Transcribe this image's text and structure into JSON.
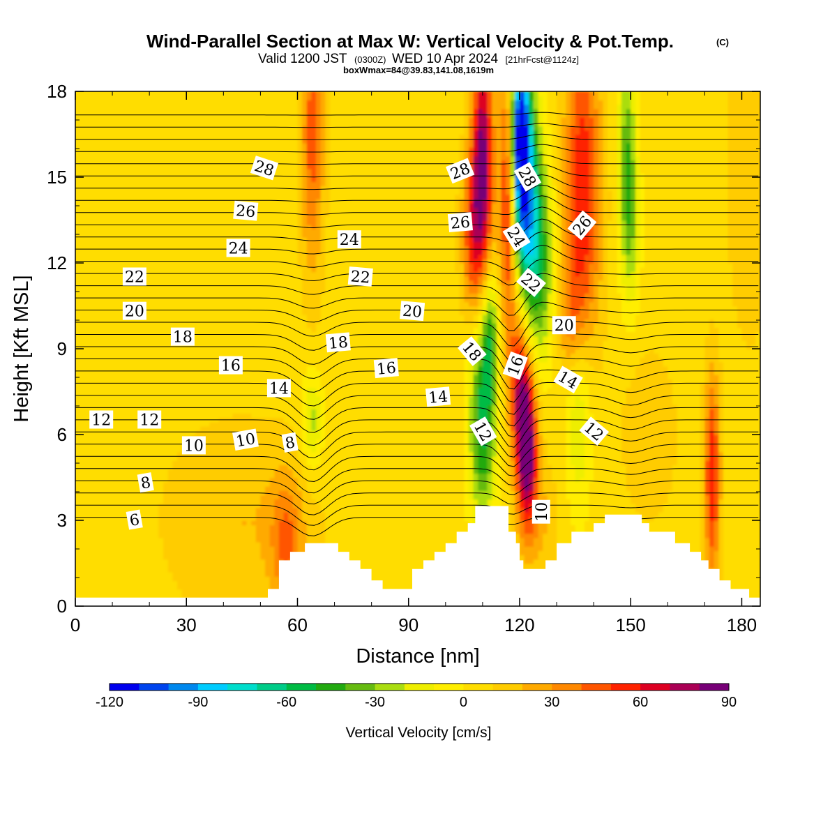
{
  "figure": {
    "title": "Wind-Parallel Section at Max W: Vertical Velocity & Pot.Temp.",
    "title_mark": "(C)",
    "valid_prefix": "Valid 1200 JST",
    "valid_zulu": "(0300Z)",
    "valid_date": "WED 10 Apr 2024",
    "forecast_info": "[21hrFcst@1124z]",
    "box_info": "boxWmax=84@39.83,141.08,1619m"
  },
  "colorbar": {
    "label": "Vertical Velocity [cm/s]",
    "tick_labels": [
      "-120",
      "-90",
      "-60",
      "-30",
      "0",
      "30",
      "60",
      "90"
    ],
    "levels": [
      -120,
      -110,
      -100,
      -90,
      -80,
      -70,
      -60,
      -50,
      -40,
      -30,
      -20,
      -10,
      0,
      10,
      20,
      30,
      40,
      50,
      60,
      70,
      80,
      90
    ],
    "colors": [
      "#0000ee",
      "#0044ee",
      "#0088ee",
      "#00ccff",
      "#00ddcc",
      "#00cc88",
      "#00bb44",
      "#22aa11",
      "#66bb11",
      "#aadd11",
      "#eeee00",
      "#ffee00",
      "#ffdd00",
      "#ffcc00",
      "#ffaa00",
      "#ff8800",
      "#ff5500",
      "#ff2200",
      "#dd0022",
      "#aa0055",
      "#770077"
    ]
  },
  "chart_data": {
    "type": "heatmap",
    "title": "Wind-Parallel Section at Max W: Vertical Velocity & Pot.Temp.",
    "xlabel": "Distance [nm]",
    "ylabel": "Height [Kft MSL]",
    "xlim": [
      0,
      185
    ],
    "ylim": [
      0,
      18
    ],
    "x_ticks": [
      0,
      30,
      60,
      90,
      120,
      150,
      180
    ],
    "y_ticks": [
      0,
      3,
      6,
      9,
      12,
      15,
      18
    ],
    "x_tick_labels": [
      "0",
      "30",
      "60",
      "90",
      "120",
      "150",
      "180"
    ],
    "y_tick_labels": [
      "0",
      "3",
      "6",
      "9",
      "12",
      "15",
      "18"
    ],
    "filled_variable": "Vertical Velocity [cm/s]",
    "contour_variable": "Pot.Temp.",
    "terrain_top_kft": [
      [
        0,
        0.3
      ],
      [
        52,
        0.3
      ],
      [
        52,
        0.6
      ],
      [
        55,
        0.6
      ],
      [
        55,
        1.6
      ],
      [
        58,
        1.6
      ],
      [
        58,
        1.9
      ],
      [
        62,
        1.9
      ],
      [
        62,
        2.2
      ],
      [
        71,
        2.2
      ],
      [
        71,
        1.9
      ],
      [
        74,
        1.9
      ],
      [
        74,
        1.6
      ],
      [
        77,
        1.6
      ],
      [
        77,
        1.3
      ],
      [
        80,
        1.3
      ],
      [
        80,
        0.9
      ],
      [
        83,
        0.9
      ],
      [
        83,
        0.6
      ],
      [
        91,
        0.6
      ],
      [
        91,
        1.3
      ],
      [
        94,
        1.3
      ],
      [
        94,
        1.6
      ],
      [
        97,
        1.6
      ],
      [
        97,
        1.9
      ],
      [
        100,
        1.9
      ],
      [
        100,
        2.2
      ],
      [
        103,
        2.2
      ],
      [
        103,
        2.6
      ],
      [
        106,
        2.6
      ],
      [
        106,
        2.9
      ],
      [
        108,
        2.9
      ],
      [
        108,
        3.5
      ],
      [
        117,
        3.5
      ],
      [
        117,
        2.6
      ],
      [
        119,
        2.6
      ],
      [
        119,
        2.2
      ],
      [
        120,
        2.2
      ],
      [
        120,
        1.6
      ],
      [
        121,
        1.6
      ],
      [
        121,
        1.3
      ],
      [
        127,
        1.3
      ],
      [
        127,
        1.6
      ],
      [
        130,
        1.6
      ],
      [
        130,
        2.2
      ],
      [
        134,
        2.2
      ],
      [
        134,
        2.6
      ],
      [
        140,
        2.6
      ],
      [
        140,
        2.9
      ],
      [
        143,
        2.9
      ],
      [
        143,
        3.2
      ],
      [
        153,
        3.2
      ],
      [
        153,
        2.9
      ],
      [
        155,
        2.9
      ],
      [
        155,
        2.6
      ],
      [
        162,
        2.6
      ],
      [
        162,
        2.2
      ],
      [
        166,
        2.2
      ],
      [
        166,
        1.9
      ],
      [
        169,
        1.9
      ],
      [
        169,
        1.6
      ],
      [
        171,
        1.6
      ],
      [
        171,
        1.3
      ],
      [
        174,
        1.3
      ],
      [
        174,
        0.9
      ],
      [
        177,
        0.9
      ],
      [
        177,
        0.6
      ],
      [
        182,
        0.6
      ],
      [
        182,
        0.3
      ],
      [
        185,
        0.3
      ]
    ],
    "w_features": [
      {
        "x": 57,
        "y": 2.2,
        "sx": 3,
        "sy": 1.6,
        "w": 30
      },
      {
        "x": 64,
        "y": 16.5,
        "sx": 2.2,
        "sy": 3.5,
        "w": 40
      },
      {
        "x": 64,
        "y": 6.5,
        "sx": 2,
        "sy": 1.2,
        "w": -30
      },
      {
        "x": 45,
        "y": 3,
        "sx": 15,
        "sy": 2.5,
        "w": 15
      },
      {
        "x": 110,
        "y": 15.5,
        "sx": 2,
        "sy": 3,
        "w": 80
      },
      {
        "x": 107,
        "y": 13,
        "sx": 2,
        "sy": 2,
        "w": 40
      },
      {
        "x": 117,
        "y": 14.5,
        "sx": 1.7,
        "sy": 3.5,
        "w": 60
      },
      {
        "x": 120,
        "y": 16.5,
        "sx": 1.8,
        "sy": 2.2,
        "w": -110
      },
      {
        "x": 122,
        "y": 14,
        "sx": 2.5,
        "sy": 3,
        "w": -80
      },
      {
        "x": 126,
        "y": 12,
        "sx": 2.5,
        "sy": 2.5,
        "w": -40
      },
      {
        "x": 110,
        "y": 6.5,
        "sx": 2.5,
        "sy": 2.5,
        "w": -60
      },
      {
        "x": 112,
        "y": 9.5,
        "sx": 1.6,
        "sy": 1.6,
        "w": -40
      },
      {
        "x": 122,
        "y": 5.5,
        "sx": 2,
        "sy": 2,
        "w": 85
      },
      {
        "x": 120,
        "y": 8,
        "sx": 2,
        "sy": 2,
        "w": 50
      },
      {
        "x": 137,
        "y": 14.5,
        "sx": 3.5,
        "sy": 4,
        "w": 55
      },
      {
        "x": 134,
        "y": 10,
        "sx": 2.5,
        "sy": 1.5,
        "w": 25
      },
      {
        "x": 149,
        "y": 16,
        "sx": 1.7,
        "sy": 2.5,
        "w": -40
      },
      {
        "x": 150,
        "y": 13,
        "sx": 1.8,
        "sy": 2,
        "w": -25
      },
      {
        "x": 136,
        "y": 7,
        "sx": 2.5,
        "sy": 2.5,
        "w": -30
      },
      {
        "x": 172,
        "y": 4.5,
        "sx": 1.5,
        "sy": 2.5,
        "w": 55
      },
      {
        "x": 126,
        "y": 3,
        "sx": 3,
        "sy": 1.5,
        "w": 15
      },
      {
        "x": 182,
        "y": 15,
        "sx": 4,
        "sy": 4,
        "w": 15
      },
      {
        "x": 155,
        "y": 6,
        "sx": 5,
        "sy": 2,
        "w": 15
      }
    ],
    "isentrope_levels": [
      6,
      8,
      10,
      12,
      14,
      16,
      18,
      20,
      22,
      24,
      26,
      28
    ],
    "isentrope_labels": [
      {
        "text": "28",
        "x": 51,
        "y": 15.3,
        "rot": 18
      },
      {
        "text": "28",
        "x": 104,
        "y": 15.2,
        "rot": -22
      },
      {
        "text": "28",
        "x": 122,
        "y": 15.0,
        "rot": 60
      },
      {
        "text": "26",
        "x": 46,
        "y": 13.8,
        "rot": 5
      },
      {
        "text": "26",
        "x": 104,
        "y": 13.4,
        "rot": -5
      },
      {
        "text": "26",
        "x": 137,
        "y": 13.3,
        "rot": -50
      },
      {
        "text": "24",
        "x": 44,
        "y": 12.5,
        "rot": 0
      },
      {
        "text": "24",
        "x": 74,
        "y": 12.8,
        "rot": 0
      },
      {
        "text": "24",
        "x": 119,
        "y": 12.9,
        "rot": 58
      },
      {
        "text": "22",
        "x": 16,
        "y": 11.5,
        "rot": 0
      },
      {
        "text": "22",
        "x": 77,
        "y": 11.5,
        "rot": 5
      },
      {
        "text": "22",
        "x": 123,
        "y": 11.3,
        "rot": 40
      },
      {
        "text": "20",
        "x": 16,
        "y": 10.3,
        "rot": 0
      },
      {
        "text": "20",
        "x": 91,
        "y": 10.3,
        "rot": 5
      },
      {
        "text": "20",
        "x": 132,
        "y": 9.8,
        "rot": 0
      },
      {
        "text": "18",
        "x": 29,
        "y": 9.4,
        "rot": 0
      },
      {
        "text": "18",
        "x": 71,
        "y": 9.2,
        "rot": -5
      },
      {
        "text": "18",
        "x": 107,
        "y": 8.9,
        "rot": 50
      },
      {
        "text": "16",
        "x": 42,
        "y": 8.4,
        "rot": 0
      },
      {
        "text": "16",
        "x": 84,
        "y": 8.3,
        "rot": -5
      },
      {
        "text": "16",
        "x": 119,
        "y": 8.4,
        "rot": -70
      },
      {
        "text": "14",
        "x": 55,
        "y": 7.6,
        "rot": 0
      },
      {
        "text": "14",
        "x": 98,
        "y": 7.3,
        "rot": -5
      },
      {
        "text": "14",
        "x": 133,
        "y": 7.9,
        "rot": 30
      },
      {
        "text": "12",
        "x": 7,
        "y": 6.5,
        "rot": 0
      },
      {
        "text": "12",
        "x": 20,
        "y": 6.5,
        "rot": 0
      },
      {
        "text": "12",
        "x": 110,
        "y": 6.1,
        "rot": 60
      },
      {
        "text": "12",
        "x": 140,
        "y": 6.1,
        "rot": 40
      },
      {
        "text": "10",
        "x": 32,
        "y": 5.6,
        "rot": 0
      },
      {
        "text": "10",
        "x": 46,
        "y": 5.8,
        "rot": -10
      },
      {
        "text": "10",
        "x": 126,
        "y": 3.3,
        "rot": -90
      },
      {
        "text": "8",
        "x": 58,
        "y": 5.7,
        "rot": -10
      },
      {
        "text": "8",
        "x": 19,
        "y": 4.3,
        "rot": -10
      },
      {
        "text": "6",
        "x": 16,
        "y": 3.0,
        "rot": -10
      }
    ]
  }
}
